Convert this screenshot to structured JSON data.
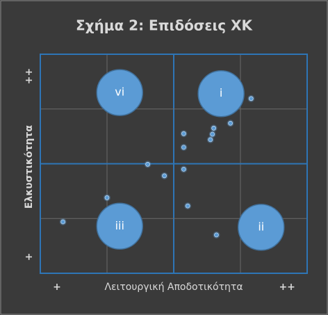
{
  "chart_data": {
    "type": "scatter",
    "title": "Σχήμα 2: Επιδόσεις ΧΚ",
    "x_label": "Λειτουργική Αποδοτικότητα",
    "y_label": "Ελκυστικότητα",
    "xlim": [
      0,
      4
    ],
    "ylim": [
      0,
      4
    ],
    "xticks": [
      {
        "value": 0.25,
        "label": "+"
      },
      {
        "value": 3.7,
        "label": "++"
      }
    ],
    "yticks": [
      {
        "value": 0.3,
        "label": "+"
      },
      {
        "value": 3.6,
        "label": "++"
      }
    ],
    "grid": true,
    "xgrid": [
      1,
      2,
      3
    ],
    "ygrid": [
      1,
      2,
      3
    ],
    "color": "#5b9bd5",
    "bubbles": [
      {
        "name": "vi",
        "x": 1.19,
        "y": 3.3
      },
      {
        "name": "i",
        "x": 2.71,
        "y": 3.28
      },
      {
        "name": "iii",
        "x": 1.19,
        "y": 0.86
      },
      {
        "name": "ii",
        "x": 3.31,
        "y": 0.84
      }
    ],
    "x": [
      3.16,
      2.85,
      2.6,
      2.58,
      2.55,
      2.15,
      2.15,
      1.61,
      1.86,
      2.15,
      1.0,
      2.21,
      0.34,
      2.64
    ],
    "values": [
      3.19,
      2.74,
      2.65,
      2.54,
      2.44,
      2.55,
      2.3,
      1.99,
      1.78,
      1.9,
      1.38,
      1.23,
      0.94,
      0.7
    ]
  }
}
